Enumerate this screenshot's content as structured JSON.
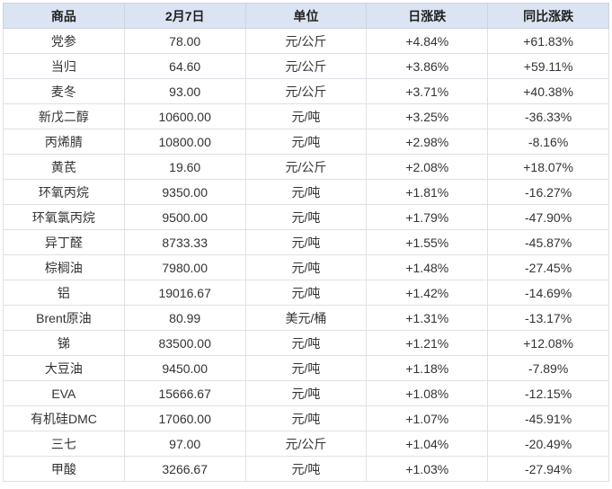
{
  "colors": {
    "header_bg": "#dbe4f2",
    "header_text": "#1f1f1f",
    "body_text": "#333333",
    "up_red": "#fd2b2b",
    "down_green": "#0f8c44",
    "grid_line": "#dde1e7",
    "outer_border": "#c9d0da"
  },
  "table": {
    "headers": [
      {
        "label": "商品"
      },
      {
        "label": "2月7日"
      },
      {
        "label": "单位"
      },
      {
        "label": "日涨跌"
      },
      {
        "label": "同比涨跌"
      }
    ],
    "rows": [
      {
        "name": "党参",
        "price": "78.00",
        "unit": "元/公斤",
        "daily_change": "+4.84%",
        "daily_dir": "up",
        "yoy_change": "+61.83%",
        "yoy_dir": "up"
      },
      {
        "name": "当归",
        "price": "64.60",
        "unit": "元/公斤",
        "daily_change": "+3.86%",
        "daily_dir": "up",
        "yoy_change": "+59.11%",
        "yoy_dir": "up"
      },
      {
        "name": "麦冬",
        "price": "93.00",
        "unit": "元/公斤",
        "daily_change": "+3.71%",
        "daily_dir": "up",
        "yoy_change": "+40.38%",
        "yoy_dir": "up"
      },
      {
        "name": "新戊二醇",
        "price": "10600.00",
        "unit": "元/吨",
        "daily_change": "+3.25%",
        "daily_dir": "up",
        "yoy_change": "-36.33%",
        "yoy_dir": "down"
      },
      {
        "name": "丙烯腈",
        "price": "10800.00",
        "unit": "元/吨",
        "daily_change": "+2.98%",
        "daily_dir": "up",
        "yoy_change": "-8.16%",
        "yoy_dir": "down"
      },
      {
        "name": "黄芪",
        "price": "19.60",
        "unit": "元/公斤",
        "daily_change": "+2.08%",
        "daily_dir": "up",
        "yoy_change": "+18.07%",
        "yoy_dir": "up"
      },
      {
        "name": "环氧丙烷",
        "price": "9350.00",
        "unit": "元/吨",
        "daily_change": "+1.81%",
        "daily_dir": "up",
        "yoy_change": "-16.27%",
        "yoy_dir": "down"
      },
      {
        "name": "环氧氯丙烷",
        "price": "9500.00",
        "unit": "元/吨",
        "daily_change": "+1.79%",
        "daily_dir": "up",
        "yoy_change": "-47.90%",
        "yoy_dir": "down"
      },
      {
        "name": "异丁醛",
        "price": "8733.33",
        "unit": "元/吨",
        "daily_change": "+1.55%",
        "daily_dir": "up",
        "yoy_change": "-45.87%",
        "yoy_dir": "down"
      },
      {
        "name": "棕榈油",
        "price": "7980.00",
        "unit": "元/吨",
        "daily_change": "+1.48%",
        "daily_dir": "up",
        "yoy_change": "-27.45%",
        "yoy_dir": "down"
      },
      {
        "name": "铝",
        "price": "19016.67",
        "unit": "元/吨",
        "daily_change": "+1.42%",
        "daily_dir": "up",
        "yoy_change": "-14.69%",
        "yoy_dir": "down"
      },
      {
        "name": "Brent原油",
        "price": "80.99",
        "unit": "美元/桶",
        "daily_change": "+1.31%",
        "daily_dir": "up",
        "yoy_change": "-13.17%",
        "yoy_dir": "down"
      },
      {
        "name": "锑",
        "price": "83500.00",
        "unit": "元/吨",
        "daily_change": "+1.21%",
        "daily_dir": "up",
        "yoy_change": "+12.08%",
        "yoy_dir": "up"
      },
      {
        "name": "大豆油",
        "price": "9450.00",
        "unit": "元/吨",
        "daily_change": "+1.18%",
        "daily_dir": "up",
        "yoy_change": "-7.89%",
        "yoy_dir": "down"
      },
      {
        "name": "EVA",
        "price": "15666.67",
        "unit": "元/吨",
        "daily_change": "+1.08%",
        "daily_dir": "up",
        "yoy_change": "-12.15%",
        "yoy_dir": "down"
      },
      {
        "name": "有机硅DMC",
        "price": "17060.00",
        "unit": "元/吨",
        "daily_change": "+1.07%",
        "daily_dir": "up",
        "yoy_change": "-45.91%",
        "yoy_dir": "down"
      },
      {
        "name": "三七",
        "price": "97.00",
        "unit": "元/公斤",
        "daily_change": "+1.04%",
        "daily_dir": "up",
        "yoy_change": "-20.49%",
        "yoy_dir": "down"
      },
      {
        "name": "甲酸",
        "price": "3266.67",
        "unit": "元/吨",
        "daily_change": "+1.03%",
        "daily_dir": "up",
        "yoy_change": "-27.94%",
        "yoy_dir": "down"
      }
    ]
  },
  "chart_data": {
    "type": "table",
    "columns": [
      "商品",
      "2月7日",
      "单位",
      "日涨跌",
      "同比涨跌"
    ],
    "rows": [
      [
        "党参",
        78.0,
        "元/公斤",
        "+4.84%",
        "+61.83%"
      ],
      [
        "当归",
        64.6,
        "元/公斤",
        "+3.86%",
        "+59.11%"
      ],
      [
        "麦冬",
        93.0,
        "元/公斤",
        "+3.71%",
        "+40.38%"
      ],
      [
        "新戊二醇",
        10600.0,
        "元/吨",
        "+3.25%",
        "-36.33%"
      ],
      [
        "丙烯腈",
        10800.0,
        "元/吨",
        "+2.98%",
        "-8.16%"
      ],
      [
        "黄芪",
        19.6,
        "元/公斤",
        "+2.08%",
        "+18.07%"
      ],
      [
        "环氧丙烷",
        9350.0,
        "元/吨",
        "+1.81%",
        "-16.27%"
      ],
      [
        "环氧氯丙烷",
        9500.0,
        "元/吨",
        "+1.79%",
        "-47.90%"
      ],
      [
        "异丁醛",
        8733.33,
        "元/吨",
        "+1.55%",
        "-45.87%"
      ],
      [
        "棕榈油",
        7980.0,
        "元/吨",
        "+1.48%",
        "-27.45%"
      ],
      [
        "铝",
        19016.67,
        "元/吨",
        "+1.42%",
        "-14.69%"
      ],
      [
        "Brent原油",
        80.99,
        "美元/桶",
        "+1.31%",
        "-13.17%"
      ],
      [
        "锑",
        83500.0,
        "元/吨",
        "+1.21%",
        "+12.08%"
      ],
      [
        "大豆油",
        9450.0,
        "元/吨",
        "+1.18%",
        "-7.89%"
      ],
      [
        "EVA",
        15666.67,
        "元/吨",
        "+1.08%",
        "-12.15%"
      ],
      [
        "有机硅DMC",
        17060.0,
        "元/吨",
        "+1.07%",
        "-45.91%"
      ],
      [
        "三七",
        97.0,
        "元/公斤",
        "+1.04%",
        "-20.49%"
      ],
      [
        "甲酸",
        3266.67,
        "元/吨",
        "+1.03%",
        "-27.94%"
      ]
    ],
    "notes": "Daily-change column all positive (red); year-over-year column red when positive, green when negative."
  }
}
